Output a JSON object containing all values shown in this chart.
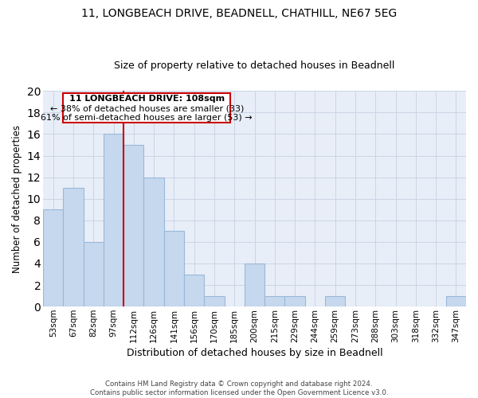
{
  "title1": "11, LONGBEACH DRIVE, BEADNELL, CHATHILL, NE67 5EG",
  "title2": "Size of property relative to detached houses in Beadnell",
  "xlabel": "Distribution of detached houses by size in Beadnell",
  "ylabel": "Number of detached properties",
  "categories": [
    "53sqm",
    "67sqm",
    "82sqm",
    "97sqm",
    "112sqm",
    "126sqm",
    "141sqm",
    "156sqm",
    "170sqm",
    "185sqm",
    "200sqm",
    "215sqm",
    "229sqm",
    "244sqm",
    "259sqm",
    "273sqm",
    "288sqm",
    "303sqm",
    "318sqm",
    "332sqm",
    "347sqm"
  ],
  "values": [
    9,
    11,
    6,
    16,
    15,
    12,
    7,
    3,
    1,
    0,
    4,
    1,
    1,
    0,
    1,
    0,
    0,
    0,
    0,
    0,
    1
  ],
  "bar_color": "#c5d8ee",
  "bar_edge_color": "#9ab8d8",
  "red_line_x": 4,
  "annotation_title": "11 LONGBEACH DRIVE: 108sqm",
  "annotation_line1": "← 38% of detached houses are smaller (33)",
  "annotation_line2": "61% of semi-detached houses are larger (53) →",
  "annotation_box_color": "#ffffff",
  "annotation_box_edge_color": "#cc0000",
  "red_line_color": "#cc0000",
  "grid_color": "#ccd5e5",
  "bg_color": "#e8eef8",
  "footer": "Contains HM Land Registry data © Crown copyright and database right 2024.\nContains public sector information licensed under the Open Government Licence v3.0.",
  "ylim": [
    0,
    20
  ],
  "yticks": [
    0,
    2,
    4,
    6,
    8,
    10,
    12,
    14,
    16,
    18,
    20
  ],
  "title1_fontsize": 10,
  "title2_fontsize": 9
}
